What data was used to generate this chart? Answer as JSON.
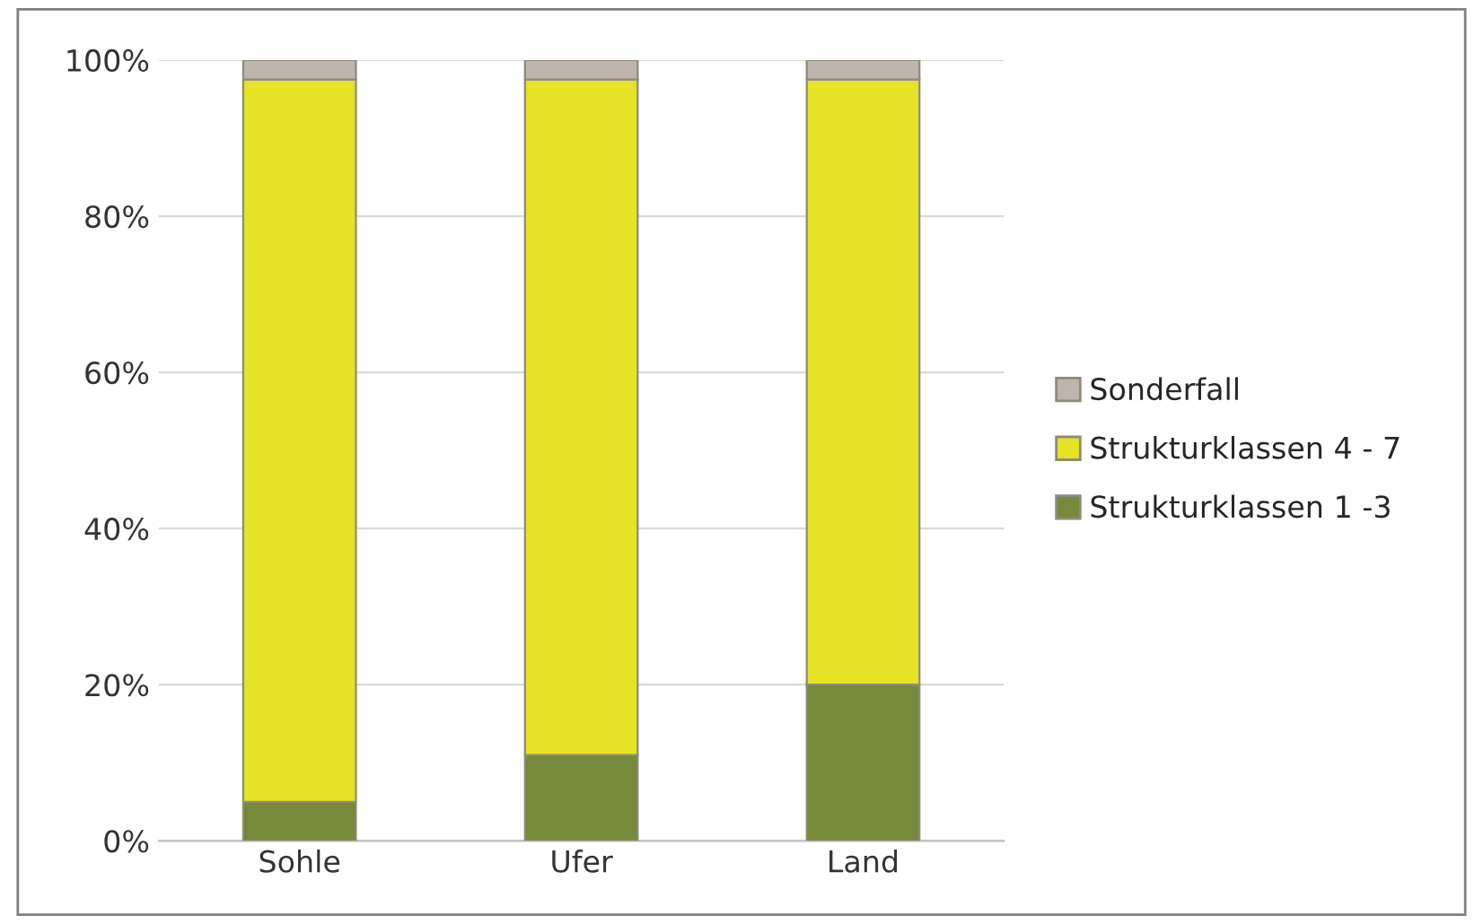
{
  "chart_data": {
    "type": "bar",
    "stacked": true,
    "categories": [
      "Sohle",
      "Ufer",
      "Land"
    ],
    "series": [
      {
        "name": "Strukturklassen 1 -3",
        "color": "#77893a",
        "values": [
          5,
          11,
          20
        ]
      },
      {
        "name": "Strukturklassen 4 - 7",
        "color": "#e6e226",
        "values": [
          92.5,
          86.5,
          77.5
        ]
      },
      {
        "name": "Sonderfall",
        "color": "#bfb5ad",
        "values": [
          2.5,
          2.5,
          2.5
        ]
      }
    ],
    "ylim": [
      0,
      100
    ],
    "yticks": [
      {
        "value": 0,
        "label": "0%"
      },
      {
        "value": 20,
        "label": "20%"
      },
      {
        "value": 40,
        "label": "40%"
      },
      {
        "value": 60,
        "label": "60%"
      },
      {
        "value": 80,
        "label": "80%"
      },
      {
        "value": 100,
        "label": "100%"
      }
    ],
    "grid": "y",
    "legend": "right"
  }
}
